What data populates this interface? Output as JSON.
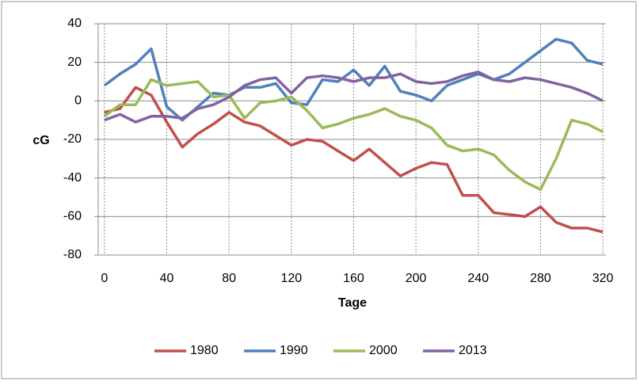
{
  "chart_data": {
    "type": "line",
    "x_label": "Tage",
    "y_label": "cG",
    "x": [
      0,
      10,
      20,
      30,
      40,
      50,
      60,
      70,
      80,
      90,
      100,
      110,
      120,
      130,
      140,
      150,
      160,
      170,
      180,
      190,
      200,
      210,
      220,
      230,
      240,
      250,
      260,
      270,
      280,
      290,
      300,
      310,
      320
    ],
    "series": [
      {
        "name": "1980",
        "color": "#c0504d",
        "values": [
          -6,
          -4,
          7,
          3,
          -11,
          -24,
          -17,
          -12,
          -6,
          -11,
          -13,
          -18,
          -23,
          -20,
          -21,
          -26,
          -31,
          -25,
          -32,
          -39,
          -35,
          -32,
          -33,
          -49,
          -49,
          -58,
          -59,
          -60,
          -55,
          -63,
          -66,
          -66,
          -68
        ]
      },
      {
        "name": "1990",
        "color": "#4f81bd",
        "values": [
          8,
          14,
          19,
          27,
          -3,
          -10,
          -3,
          4,
          3,
          7,
          7,
          9,
          -1,
          -2,
          11,
          10,
          16,
          8,
          18,
          5,
          3,
          0,
          8,
          11,
          14,
          11,
          14,
          20,
          26,
          32,
          30,
          21,
          19
        ]
      },
      {
        "name": "2000",
        "color": "#9bbb59",
        "values": [
          -8,
          -2,
          -2,
          11,
          8,
          9,
          10,
          2,
          3,
          -9,
          -1,
          0,
          2,
          -5,
          -14,
          -12,
          -9,
          -7,
          -4,
          -8,
          -10,
          -14,
          -23,
          -26,
          -25,
          -28,
          -36,
          -42,
          -46,
          -30,
          -10,
          -12,
          -16
        ]
      },
      {
        "name": "2013",
        "color": "#8064a2",
        "values": [
          -10,
          -7,
          -11,
          -8,
          -8,
          -9,
          -4,
          -2,
          2,
          8,
          11,
          12,
          4,
          12,
          13,
          12,
          10,
          12,
          12,
          14,
          10,
          9,
          10,
          13,
          15,
          11,
          10,
          12,
          11,
          9,
          7,
          4,
          0
        ]
      }
    ],
    "xlim": [
      -4,
      322
    ],
    "xticks": [
      0,
      40,
      80,
      120,
      160,
      200,
      240,
      280,
      320
    ],
    "ylim": [
      -80,
      40
    ],
    "yticks": [
      -80,
      -60,
      -40,
      -20,
      0,
      20,
      40
    ],
    "grid": true,
    "legend": "bottom"
  }
}
